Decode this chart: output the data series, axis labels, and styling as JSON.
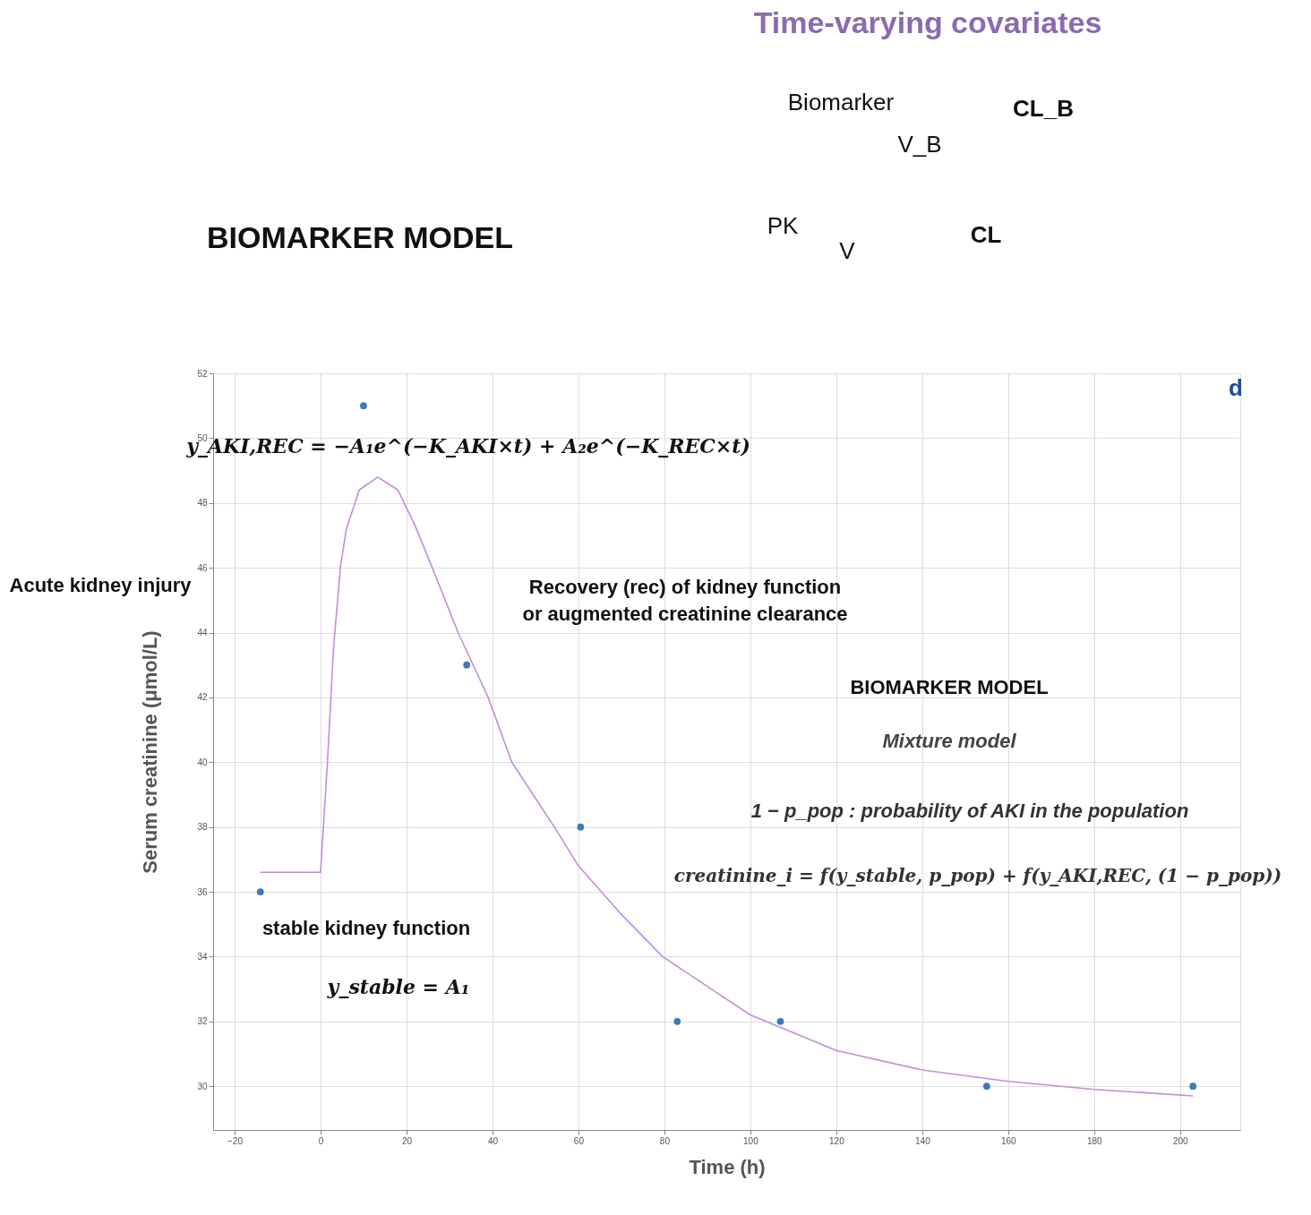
{
  "chart_data": {
    "type": "scatter",
    "title": "BIOMARKER MODEL",
    "xlabel": "Time (h)",
    "ylabel": "Serum creatinine (μmol/L)",
    "xlim": [
      -25,
      214
    ],
    "ylim": [
      28.65,
      52
    ],
    "xticks": [
      -20,
      0,
      20,
      40,
      60,
      80,
      100,
      120,
      140,
      160,
      180,
      200
    ],
    "yticks": [
      30,
      32,
      34,
      36,
      38,
      40,
      42,
      44,
      46,
      48,
      50,
      52
    ],
    "grid": true,
    "series": [
      {
        "marker": "circle",
        "color": "#3b7bb8",
        "x": [
          -14,
          10,
          34,
          60.5,
          83,
          107,
          155,
          203
        ],
        "values": [
          36,
          51,
          43,
          38,
          32,
          32,
          30,
          30
        ]
      },
      {
        "type": "line",
        "color": "#c08ed8",
        "line_style": "solid",
        "x": [
          -14,
          0,
          1.6,
          3,
          4.6,
          6,
          9,
          13.3,
          18,
          22,
          26,
          32,
          39,
          44.5,
          54.4,
          60,
          70,
          79.6,
          92,
          100,
          120,
          140,
          160,
          180,
          203
        ],
        "values": [
          36.6,
          36.6,
          40,
          43.5,
          46,
          47.2,
          48.4,
          48.8,
          48.4,
          47.3,
          46,
          44,
          42,
          40,
          38,
          36.8,
          35.3,
          34,
          32.9,
          32.2,
          31.1,
          30.5,
          30.15,
          29.9,
          29.7
        ]
      }
    ],
    "annotations": [
      "d",
      "y_AKI,REC = −A₁e^(−K_AKI×t) + A₂e^(−K_REC×t)",
      "Acute kidney injury",
      "Recovery (rec) of kidney function\nor augmented creatinine clearance",
      "BIOMARKER MODEL",
      "Mixture model",
      "1 − p_pop : probability of AKI in the population",
      "creatinine_i = f(y_stable, p_pop) + f(y_AKI,REC, (1 − p_pop))",
      "stable kidney function",
      "y_stable = A₁",
      "Time-varying covariates",
      "Biomarker",
      "V_B",
      "CL_B",
      "PK",
      "V",
      "CL"
    ]
  }
}
